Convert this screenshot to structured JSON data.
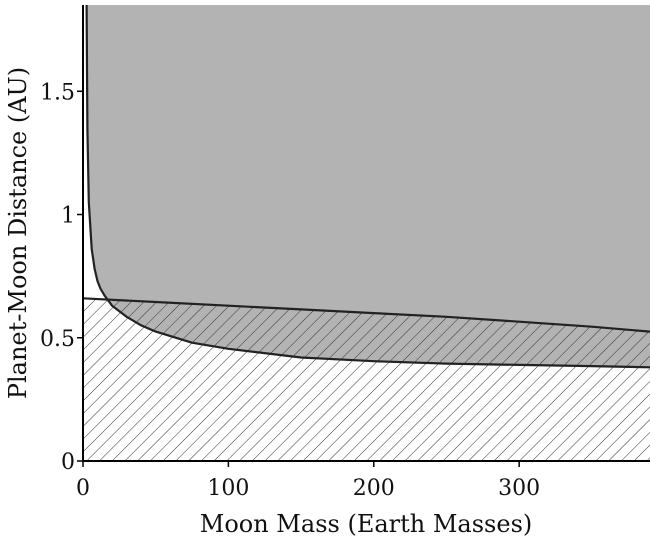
{
  "chart_data": {
    "type": "area",
    "xlabel": "Moon Mass (Earth Masses)",
    "ylabel": "Planet-Moon Distance (AU)",
    "xlim": [
      0,
      390
    ],
    "ylim": [
      0,
      1.85
    ],
    "x_ticks": [
      0,
      100,
      200,
      300
    ],
    "y_ticks": [
      0,
      0.5,
      1,
      1.5
    ],
    "x_tick_labels": [
      "0",
      "100",
      "200",
      "300"
    ],
    "y_tick_labels": [
      "0",
      "0.5",
      "1",
      "1.5"
    ],
    "grid": false,
    "legend": "none",
    "colors": {
      "gray_fill": "#b3b3b3",
      "curve": "#222222",
      "hatch": "#333333"
    },
    "series": [
      {
        "x": [
          2.5,
          3,
          4,
          6,
          8,
          10,
          12,
          15,
          20,
          30,
          40,
          50,
          75,
          100,
          150,
          200,
          250,
          300,
          350,
          390
        ],
        "values": [
          1.85,
          1.35,
          1.05,
          0.86,
          0.78,
          0.73,
          0.7,
          0.67,
          0.63,
          0.585,
          0.55,
          0.525,
          0.48,
          0.455,
          0.42,
          0.405,
          0.395,
          0.39,
          0.385,
          0.38
        ]
      },
      {
        "x": [
          0,
          50,
          100,
          150,
          200,
          250,
          300,
          350,
          390
        ],
        "values": [
          0.66,
          0.645,
          0.63,
          0.615,
          0.6,
          0.585,
          0.565,
          0.545,
          0.525
        ]
      }
    ]
  }
}
